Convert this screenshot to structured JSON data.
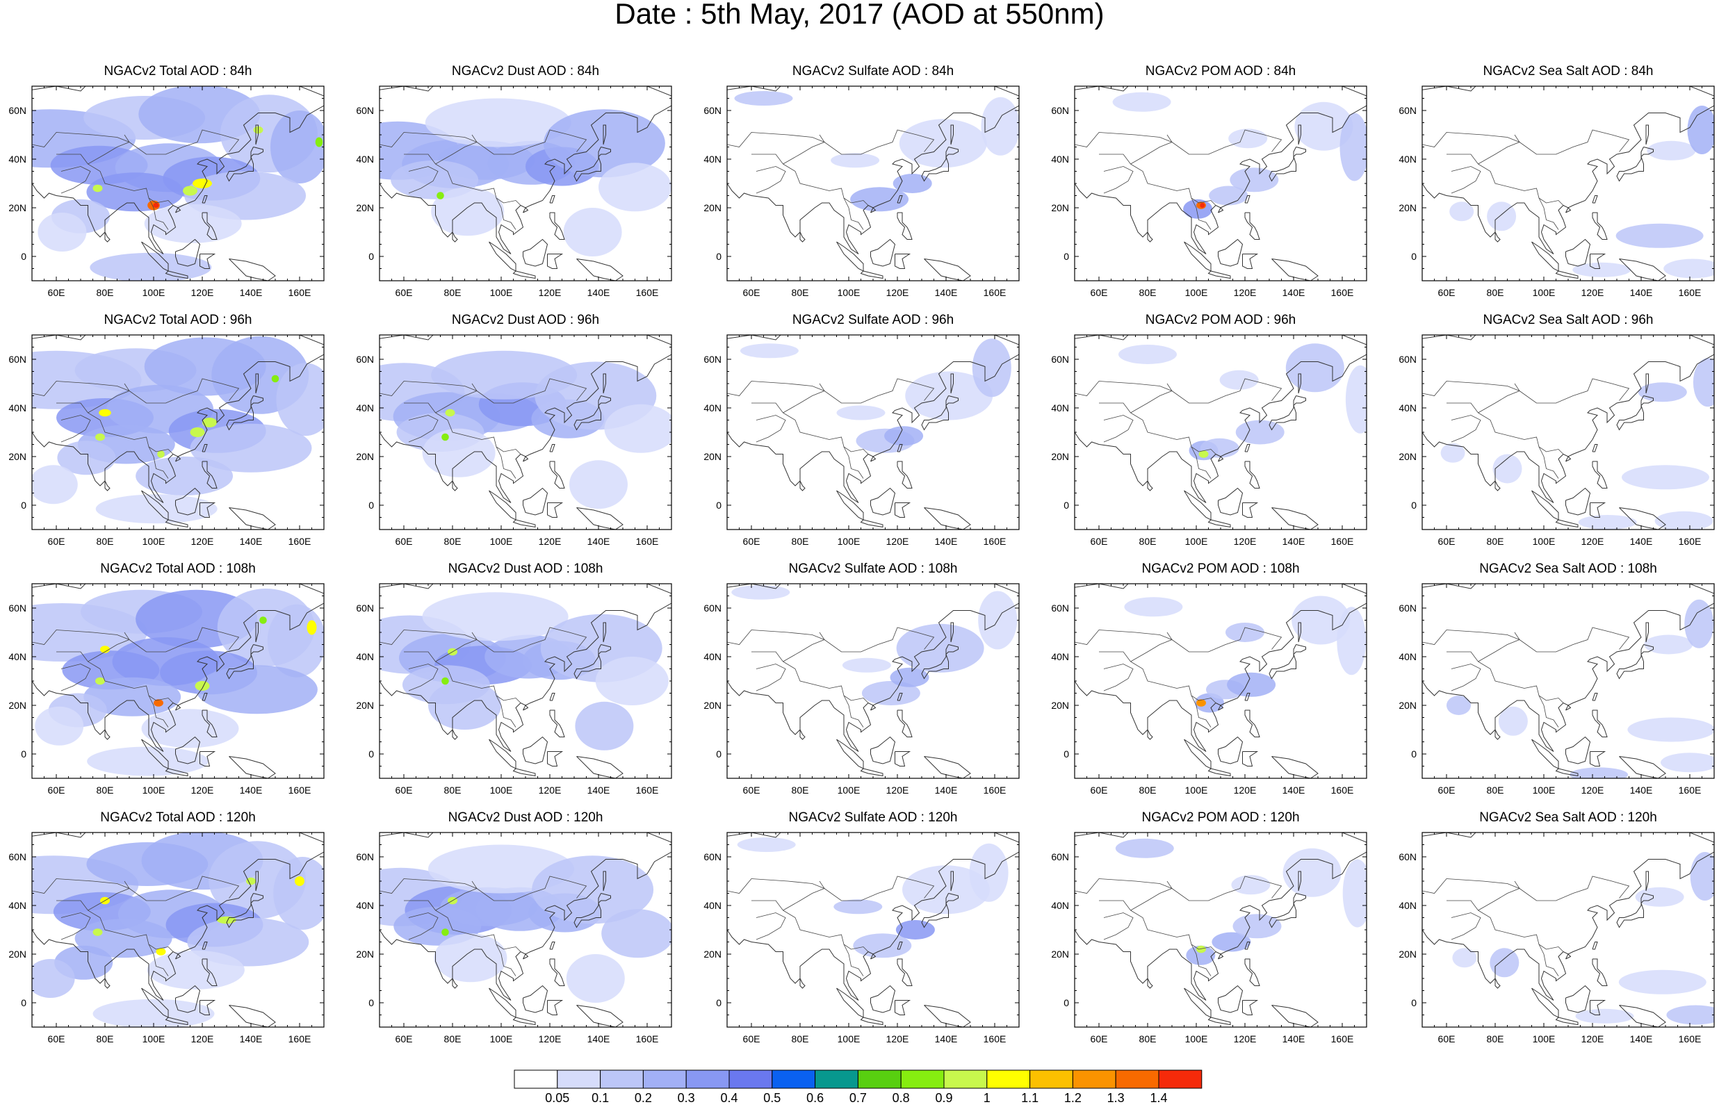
{
  "page": {
    "title": "Date : 5th May, 2017 (AOD at 550nm)"
  },
  "axes": {
    "lat_labels": [
      "60N",
      "40N",
      "20N",
      "0"
    ],
    "lon_labels": [
      "60E",
      "80E",
      "100E",
      "120E",
      "140E",
      "160E"
    ],
    "lat_range": [
      -10,
      70
    ],
    "lon_range": [
      50,
      170
    ]
  },
  "panels": [
    [
      "NGACv2 Total AOD : 84h",
      "NGACv2 Dust AOD : 84h",
      "NGACv2 Sulfate AOD : 84h",
      "NGACv2 POM AOD : 84h",
      "NGACv2 Sea Salt AOD : 84h"
    ],
    [
      "NGACv2 Total AOD : 96h",
      "NGACv2 Dust AOD : 96h",
      "NGACv2 Sulfate AOD : 96h",
      "NGACv2 POM AOD : 96h",
      "NGACv2 Sea Salt AOD : 96h"
    ],
    [
      "NGACv2 Total AOD : 108h",
      "NGACv2 Dust AOD : 108h",
      "NGACv2 Sulfate AOD : 108h",
      "NGACv2 POM AOD : 108h",
      "NGACv2 Sea Salt AOD : 108h"
    ],
    [
      "NGACv2 Total AOD : 120h",
      "NGACv2 Dust AOD : 120h",
      "NGACv2 Sulfate AOD : 120h",
      "NGACv2 POM AOD : 120h",
      "NGACv2 Sea Salt  AOD : 120h"
    ]
  ],
  "colorbar": {
    "labels": [
      "0.05",
      "0.1",
      "0.2",
      "0.3",
      "0.4",
      "0.5",
      "0.6",
      "0.7",
      "0.8",
      "0.9",
      "1",
      "1.1",
      "1.2",
      "1.3",
      "1.4"
    ],
    "colors": [
      "#ffffff",
      "#d6dcfb",
      "#bcc6f8",
      "#a2b0f6",
      "#8898f3",
      "#6a78ef",
      "#0a61f0",
      "#07988e",
      "#58cf10",
      "#86ed10",
      "#c8f84d",
      "#ffff00",
      "#fcc000",
      "#fb9300",
      "#f86a00",
      "#f52a0a"
    ]
  }
}
